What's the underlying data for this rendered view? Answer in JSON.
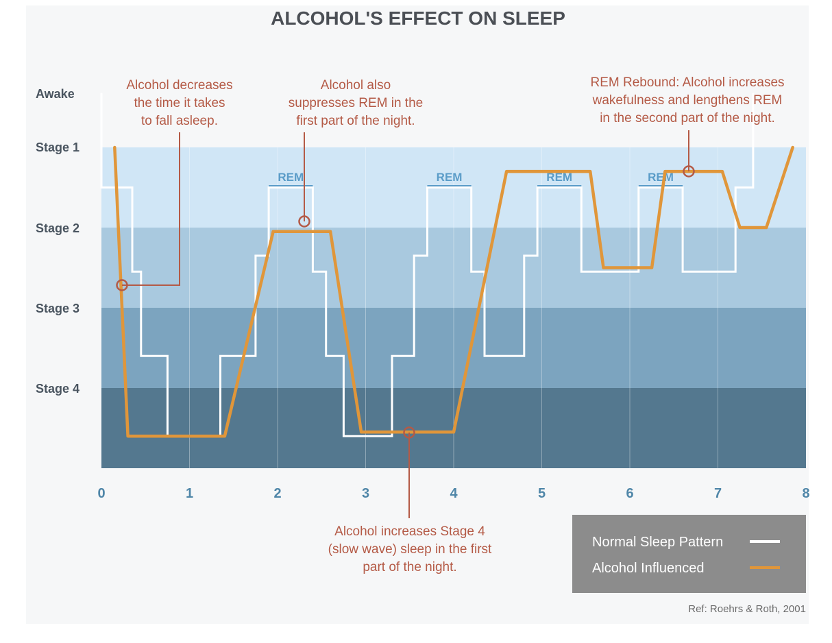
{
  "chart_data": {
    "type": "line",
    "title": "ALCOHOL'S EFFECT ON SLEEP",
    "xlabel": "",
    "ylabel": "",
    "xlim": [
      0,
      8
    ],
    "x_ticks": [
      "0",
      "1",
      "2",
      "3",
      "4",
      "5",
      "6",
      "7",
      "8"
    ],
    "y_levels": [
      {
        "label": "Awake",
        "value": 0
      },
      {
        "label": "Stage 1",
        "value": 1
      },
      {
        "label": "Stage 2",
        "value": 2
      },
      {
        "label": "Stage 3",
        "value": 3
      },
      {
        "label": "Stage 4",
        "value": 4
      }
    ],
    "rem_periods": [
      {
        "label": "REM",
        "start": 1.9,
        "end": 2.4
      },
      {
        "label": "REM",
        "start": 3.7,
        "end": 4.2
      },
      {
        "label": "REM",
        "start": 4.95,
        "end": 5.45
      },
      {
        "label": "REM",
        "start": 6.1,
        "end": 6.6
      }
    ],
    "series": [
      {
        "name": "Normal Sleep Pattern",
        "color": "#ffffff",
        "step": true,
        "points": [
          [
            0.0,
            0.0
          ],
          [
            0.0,
            1.5
          ],
          [
            0.35,
            1.5
          ],
          [
            0.35,
            2.55
          ],
          [
            0.45,
            2.55
          ],
          [
            0.45,
            3.6
          ],
          [
            0.75,
            3.6
          ],
          [
            0.75,
            4.6
          ],
          [
            1.35,
            4.6
          ],
          [
            1.35,
            3.6
          ],
          [
            1.75,
            3.6
          ],
          [
            1.75,
            2.35
          ],
          [
            1.9,
            2.35
          ],
          [
            1.9,
            1.5
          ],
          [
            2.4,
            1.5
          ],
          [
            2.4,
            2.55
          ],
          [
            2.55,
            2.55
          ],
          [
            2.55,
            3.6
          ],
          [
            2.75,
            3.6
          ],
          [
            2.75,
            4.6
          ],
          [
            3.3,
            4.6
          ],
          [
            3.3,
            3.6
          ],
          [
            3.55,
            3.6
          ],
          [
            3.55,
            2.35
          ],
          [
            3.7,
            2.35
          ],
          [
            3.7,
            1.5
          ],
          [
            4.2,
            1.5
          ],
          [
            4.2,
            2.55
          ],
          [
            4.35,
            2.55
          ],
          [
            4.35,
            3.6
          ],
          [
            4.8,
            3.6
          ],
          [
            4.8,
            2.35
          ],
          [
            4.95,
            2.35
          ],
          [
            4.95,
            1.5
          ],
          [
            5.45,
            1.5
          ],
          [
            5.45,
            2.55
          ],
          [
            6.1,
            2.55
          ],
          [
            6.1,
            1.5
          ],
          [
            6.6,
            1.5
          ],
          [
            6.6,
            2.55
          ],
          [
            7.2,
            2.55
          ],
          [
            7.2,
            1.5
          ],
          [
            7.4,
            1.5
          ],
          [
            7.4,
            0.0
          ]
        ]
      },
      {
        "name": "Alcohol Influenced",
        "color": "#e0963a",
        "step": false,
        "points": [
          [
            0.15,
            1.0
          ],
          [
            0.3,
            4.6
          ],
          [
            1.4,
            4.6
          ],
          [
            1.95,
            2.05
          ],
          [
            2.6,
            2.05
          ],
          [
            2.95,
            4.55
          ],
          [
            4.0,
            4.55
          ],
          [
            4.6,
            1.3
          ],
          [
            5.55,
            1.3
          ],
          [
            5.7,
            2.5
          ],
          [
            6.25,
            2.5
          ],
          [
            6.4,
            1.3
          ],
          [
            7.05,
            1.3
          ],
          [
            7.25,
            2.0
          ],
          [
            7.55,
            2.0
          ],
          [
            7.85,
            1.0
          ]
        ]
      }
    ],
    "annotations": [
      {
        "lines": [
          "Alcohol decreases",
          "the time it takes",
          "to fall asleep."
        ]
      },
      {
        "lines": [
          "Alcohol also",
          "suppresses REM in the",
          "first part of the night."
        ]
      },
      {
        "lines": [
          "REM Rebound: Alcohol increases",
          "wakefulness and lengthens REM",
          "in the second part of the night."
        ]
      },
      {
        "lines": [
          "Alcohol increases Stage 4",
          "(slow wave) sleep in the first",
          "part of the night."
        ]
      }
    ],
    "legend": {
      "position": "bottom-right",
      "entries": [
        {
          "label": "Normal Sleep Pattern",
          "color": "#ffffff"
        },
        {
          "label": "Alcohol Influenced",
          "color": "#e0963a"
        }
      ]
    },
    "ref": "Ref: Roehrs & Roth, 2001",
    "band_colors": [
      "#d0e6f6",
      "#a9c9df",
      "#7ca4bf",
      "#54788f"
    ],
    "annotation_color": "#b45a46"
  }
}
